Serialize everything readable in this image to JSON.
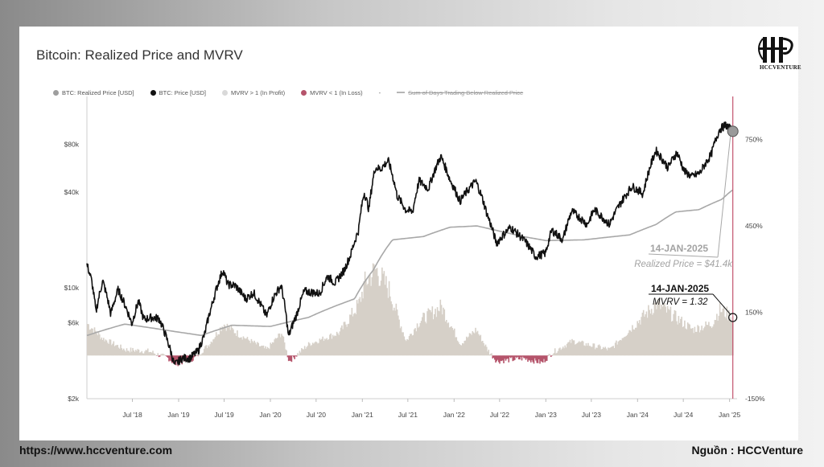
{
  "page": {
    "title": "Bitcoin: Realized Price and MVRV",
    "logo_text": "HCCVENTURE",
    "footer_left": "https://www.hccventure.com",
    "footer_right": "Nguồn : HCCVenture"
  },
  "legend": [
    {
      "label": "BTC: Realized Price [USD]",
      "color": "#9e9e9e",
      "kind": "dot"
    },
    {
      "label": "BTC: Price [USD]",
      "color": "#111111",
      "kind": "dot"
    },
    {
      "label": "MVRV > 1 (In Profit)",
      "color": "#d9d9d9",
      "kind": "dot"
    },
    {
      "label": "MVRV < 1 (In Loss)",
      "color": "#b5546b",
      "kind": "dot"
    },
    {
      "label": "-",
      "color": "#555555",
      "kind": "text"
    },
    {
      "label": "Sum of Days Trading Below Realized Price",
      "color": "#b5b5b5",
      "kind": "line-strike"
    }
  ],
  "annotations": {
    "realized": {
      "date": "14-JAN-2025",
      "text": "Realized Price = $41.4k"
    },
    "mvrv": {
      "date": "14-JAN-2025",
      "text": "MVRV = 1.32"
    }
  },
  "chart_data": {
    "type": "line",
    "title": "Bitcoin: Realized Price and MVRV",
    "x_range": [
      "2018-01-01",
      "2025-01-31"
    ],
    "x_ticks": [
      "Jul '18",
      "Jan '19",
      "Jul '19",
      "Jan '20",
      "Jul '20",
      "Jan '21",
      "Jul '21",
      "Jan '22",
      "Jul '22",
      "Jan '23",
      "Jul '23",
      "Jan '24",
      "Jul '24",
      "Jan '25"
    ],
    "x_tick_dates": [
      "2018-07-01",
      "2019-01-01",
      "2019-07-01",
      "2020-01-01",
      "2020-07-01",
      "2021-01-01",
      "2021-07-01",
      "2022-01-01",
      "2022-07-01",
      "2023-01-01",
      "2023-07-01",
      "2024-01-01",
      "2024-07-01",
      "2025-01-01"
    ],
    "y_left": {
      "scale": "log",
      "ticks": [
        "$2k",
        "$6k",
        "$10k",
        "$40k",
        "$80k"
      ],
      "tick_values": [
        2000,
        6000,
        10000,
        40000,
        80000
      ],
      "range": [
        2000,
        160000
      ]
    },
    "y_right": {
      "ticks": [
        "-150%",
        "150%",
        "450%",
        "750%"
      ],
      "tick_values": [
        -150,
        150,
        450,
        750
      ],
      "range": [
        -150,
        900
      ]
    },
    "series": [
      {
        "name": "BTC: Price [USD]",
        "color": "#111111",
        "axis": "left",
        "points": [
          [
            "2018-01-01",
            14000
          ],
          [
            "2018-01-20",
            11000
          ],
          [
            "2018-02-06",
            7000
          ],
          [
            "2018-03-05",
            11000
          ],
          [
            "2018-04-06",
            6800
          ],
          [
            "2018-05-05",
            9700
          ],
          [
            "2018-06-29",
            5900
          ],
          [
            "2018-07-25",
            8200
          ],
          [
            "2018-08-15",
            6300
          ],
          [
            "2018-09-15",
            6500
          ],
          [
            "2018-10-15",
            6400
          ],
          [
            "2018-11-20",
            4500
          ],
          [
            "2018-12-15",
            3250
          ],
          [
            "2019-01-15",
            3600
          ],
          [
            "2019-02-15",
            3600
          ],
          [
            "2019-03-20",
            4000
          ],
          [
            "2019-04-15",
            5100
          ],
          [
            "2019-05-15",
            7900
          ],
          [
            "2019-06-26",
            12900
          ],
          [
            "2019-07-15",
            10500
          ],
          [
            "2019-08-15",
            10300
          ],
          [
            "2019-09-25",
            8500
          ],
          [
            "2019-10-26",
            9300
          ],
          [
            "2019-12-17",
            6600
          ],
          [
            "2020-01-15",
            8800
          ],
          [
            "2020-02-13",
            10300
          ],
          [
            "2020-03-13",
            4900
          ],
          [
            "2020-04-15",
            6800
          ],
          [
            "2020-05-15",
            9500
          ],
          [
            "2020-07-15",
            9200
          ],
          [
            "2020-08-15",
            11800
          ],
          [
            "2020-09-15",
            10700
          ],
          [
            "2020-10-21",
            12900
          ],
          [
            "2020-11-15",
            16000
          ],
          [
            "2020-12-17",
            23000
          ],
          [
            "2021-01-08",
            40000
          ],
          [
            "2021-01-27",
            31000
          ],
          [
            "2021-02-21",
            57000
          ],
          [
            "2021-03-15",
            56000
          ],
          [
            "2021-04-14",
            63000
          ],
          [
            "2021-05-19",
            38000
          ],
          [
            "2021-06-22",
            31000
          ],
          [
            "2021-07-20",
            30000
          ],
          [
            "2021-08-15",
            47000
          ],
          [
            "2021-09-21",
            42000
          ],
          [
            "2021-11-09",
            67000
          ],
          [
            "2021-12-15",
            48000
          ],
          [
            "2022-01-24",
            35000
          ],
          [
            "2022-03-28",
            47000
          ],
          [
            "2022-05-12",
            29000
          ],
          [
            "2022-06-18",
            19000
          ],
          [
            "2022-08-13",
            24000
          ],
          [
            "2022-10-15",
            19200
          ],
          [
            "2022-11-21",
            15700
          ],
          [
            "2022-12-31",
            16500
          ],
          [
            "2023-01-25",
            23000
          ],
          [
            "2023-03-10",
            20000
          ],
          [
            "2023-04-14",
            30400
          ],
          [
            "2023-06-15",
            25000
          ],
          [
            "2023-07-13",
            31000
          ],
          [
            "2023-09-11",
            25000
          ],
          [
            "2023-10-25",
            34000
          ],
          [
            "2023-12-10",
            43500
          ],
          [
            "2024-01-23",
            39000
          ],
          [
            "2024-03-14",
            73000
          ],
          [
            "2024-05-01",
            57000
          ],
          [
            "2024-06-05",
            71000
          ],
          [
            "2024-07-05",
            54000
          ],
          [
            "2024-08-05",
            50000
          ],
          [
            "2024-09-06",
            53000
          ],
          [
            "2024-10-20",
            69000
          ],
          [
            "2024-11-22",
            99000
          ],
          [
            "2024-12-17",
            106000
          ],
          [
            "2025-01-14",
            96500
          ]
        ]
      },
      {
        "name": "BTC: Realized Price [USD]",
        "color": "#a8a8a8",
        "axis": "left",
        "points": [
          [
            "2018-01-01",
            5000
          ],
          [
            "2018-06-01",
            5900
          ],
          [
            "2018-12-15",
            5300
          ],
          [
            "2019-04-01",
            5000
          ],
          [
            "2019-08-01",
            5800
          ],
          [
            "2020-01-01",
            5700
          ],
          [
            "2020-06-01",
            6500
          ],
          [
            "2020-12-01",
            8500
          ],
          [
            "2021-02-15",
            13000
          ],
          [
            "2021-05-01",
            20000
          ],
          [
            "2021-09-01",
            21000
          ],
          [
            "2021-12-15",
            24000
          ],
          [
            "2022-04-01",
            24500
          ],
          [
            "2022-06-15",
            23000
          ],
          [
            "2022-10-01",
            21000
          ],
          [
            "2023-01-01",
            19800
          ],
          [
            "2023-06-01",
            20000
          ],
          [
            "2023-12-01",
            21500
          ],
          [
            "2024-03-15",
            25000
          ],
          [
            "2024-06-01",
            30000
          ],
          [
            "2024-09-01",
            31000
          ],
          [
            "2024-12-01",
            36000
          ],
          [
            "2025-01-14",
            41400
          ]
        ]
      },
      {
        "name": "MVRV",
        "color": "#d6d0c8",
        "loss_color": "#b5546b",
        "axis": "right",
        "unit": "%",
        "points": [
          [
            "2018-01-01",
            110
          ],
          [
            "2018-03-01",
            60
          ],
          [
            "2018-06-01",
            20
          ],
          [
            "2018-09-01",
            15
          ],
          [
            "2018-11-20",
            -10
          ],
          [
            "2018-12-15",
            -30
          ],
          [
            "2019-03-01",
            -10
          ],
          [
            "2019-05-01",
            40
          ],
          [
            "2019-06-26",
            110
          ],
          [
            "2019-09-01",
            70
          ],
          [
            "2019-12-15",
            20
          ],
          [
            "2020-02-13",
            80
          ],
          [
            "2020-03-13",
            -20
          ],
          [
            "2020-06-01",
            40
          ],
          [
            "2020-10-01",
            80
          ],
          [
            "2020-12-17",
            180
          ],
          [
            "2021-01-08",
            250
          ],
          [
            "2021-02-21",
            300
          ],
          [
            "2021-04-14",
            230
          ],
          [
            "2021-06-22",
            50
          ],
          [
            "2021-08-15",
            120
          ],
          [
            "2021-11-09",
            170
          ],
          [
            "2022-01-24",
            40
          ],
          [
            "2022-03-28",
            90
          ],
          [
            "2022-05-12",
            20
          ],
          [
            "2022-06-18",
            -20
          ],
          [
            "2022-10-01",
            -10
          ],
          [
            "2022-12-15",
            -25
          ],
          [
            "2023-01-25",
            10
          ],
          [
            "2023-04-14",
            50
          ],
          [
            "2023-09-11",
            20
          ],
          [
            "2023-12-10",
            100
          ],
          [
            "2024-03-14",
            180
          ],
          [
            "2024-08-05",
            90
          ],
          [
            "2024-10-20",
            110
          ],
          [
            "2024-11-22",
            160
          ],
          [
            "2025-01-14",
            132
          ]
        ]
      }
    ],
    "marker_line_date": "2025-01-14",
    "marker_line_color": "#c2526d"
  }
}
